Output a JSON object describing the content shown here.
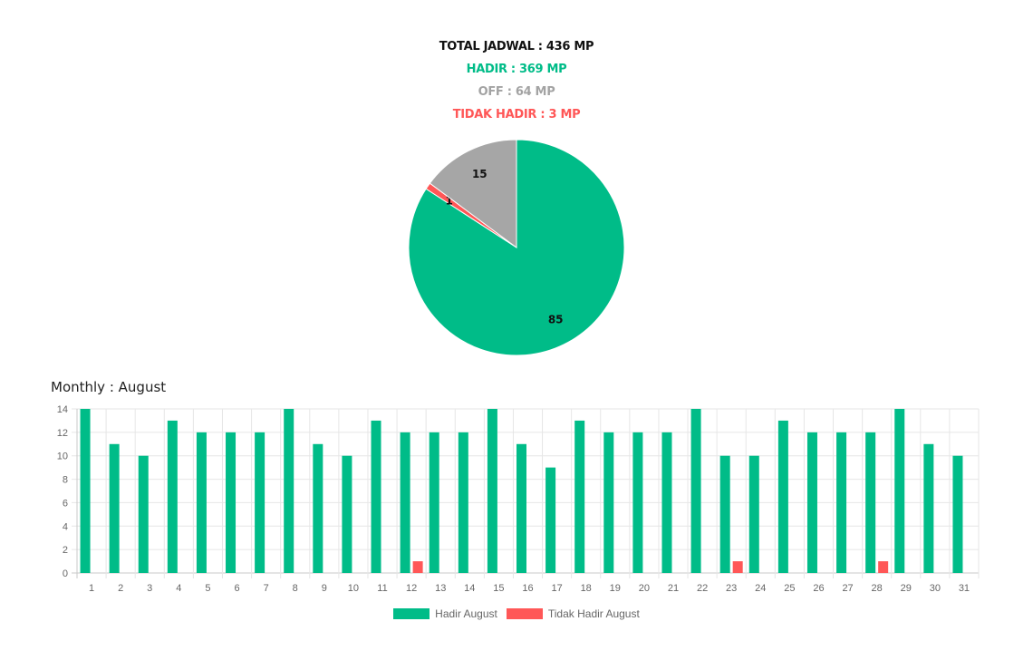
{
  "stats": {
    "total": "TOTAL JADWAL : 436 MP",
    "hadir": "HADIR : 369 MP",
    "off": "OFF : 64 MP",
    "tidak_hadir": "TIDAK HADIR : 3 MP"
  },
  "colors": {
    "hadir": "#00bc88",
    "off": "#a6a6a6",
    "tidak_hadir": "#ff5757"
  },
  "chart_data": [
    {
      "type": "pie",
      "slices": [
        {
          "label": "85",
          "value": 85,
          "color": "#00bc88"
        },
        {
          "label": "1",
          "value": 1,
          "color": "#ff5757"
        },
        {
          "label": "15",
          "value": 15,
          "color": "#a6a6a6"
        }
      ]
    },
    {
      "type": "bar",
      "title": "Monthly : August",
      "categories": [
        "1",
        "2",
        "3",
        "4",
        "5",
        "6",
        "7",
        "8",
        "9",
        "10",
        "11",
        "12",
        "13",
        "14",
        "15",
        "16",
        "17",
        "18",
        "19",
        "20",
        "21",
        "22",
        "23",
        "24",
        "25",
        "26",
        "27",
        "28",
        "29",
        "30",
        "31"
      ],
      "series": [
        {
          "name": "Hadir August",
          "color": "#00bc88",
          "values": [
            14,
            11,
            10,
            13,
            12,
            12,
            12,
            14,
            11,
            10,
            13,
            12,
            12,
            12,
            14,
            11,
            9,
            13,
            12,
            12,
            12,
            14,
            10,
            10,
            13,
            12,
            12,
            12,
            14,
            11,
            10
          ]
        },
        {
          "name": "Tidak Hadir August",
          "color": "#ff5757",
          "values": [
            0,
            0,
            0,
            0,
            0,
            0,
            0,
            0,
            0,
            0,
            0,
            1,
            0,
            0,
            0,
            0,
            0,
            0,
            0,
            0,
            0,
            0,
            1,
            0,
            0,
            0,
            0,
            1,
            0,
            0,
            0
          ]
        }
      ],
      "y_ticks": [
        "0",
        "2",
        "4",
        "6",
        "8",
        "10",
        "12",
        "14"
      ],
      "ylim": [
        0,
        14
      ],
      "grid": true,
      "legend": "bottom"
    }
  ]
}
